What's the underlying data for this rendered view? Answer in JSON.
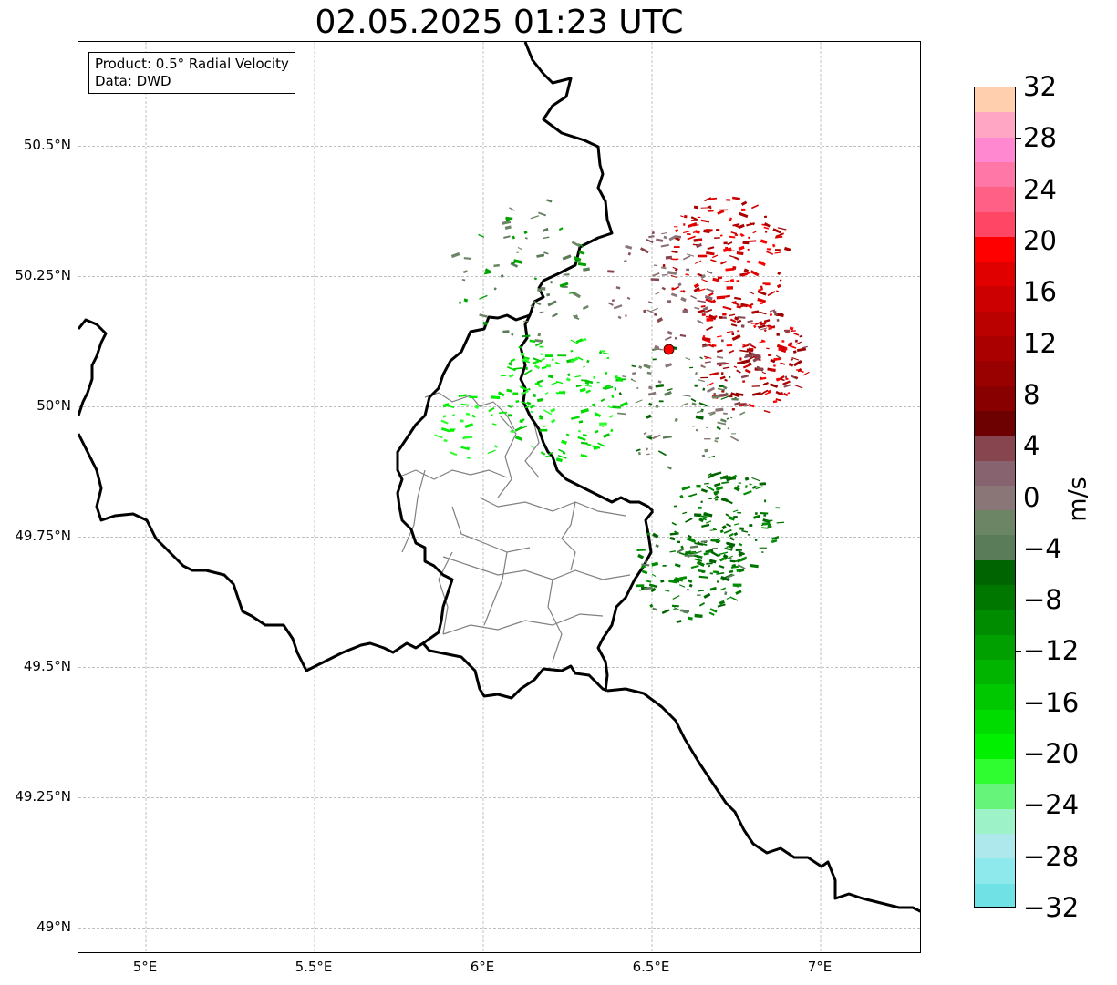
{
  "title": "02.05.2025 01:23 UTC",
  "infobox": {
    "product": "Product: 0.5° Radial Velocity",
    "data_source": "Data: DWD"
  },
  "map": {
    "lon_range": [
      4.8,
      7.3
    ],
    "lat_range": [
      48.95,
      50.7
    ],
    "x_ticks": [
      {
        "lon": 5.0,
        "label": "5°E"
      },
      {
        "lon": 5.5,
        "label": "5.5°E"
      },
      {
        "lon": 6.0,
        "label": "6°E"
      },
      {
        "lon": 6.5,
        "label": "6.5°E"
      },
      {
        "lon": 7.0,
        "label": "7°E"
      }
    ],
    "y_ticks": [
      {
        "lat": 50.5,
        "label": "50.5°N"
      },
      {
        "lat": 50.25,
        "label": "50.25°N"
      },
      {
        "lat": 50.0,
        "label": "50°N"
      },
      {
        "lat": 49.75,
        "label": "49.75°N"
      },
      {
        "lat": 49.5,
        "label": "49.5°N"
      },
      {
        "lat": 49.25,
        "label": "49.25°N"
      },
      {
        "lat": 49.0,
        "label": "49°N"
      }
    ],
    "gridlines": true,
    "radar_site": {
      "lon": 6.55,
      "lat": 50.11,
      "color": "#ff0000"
    },
    "border_color": "#000000",
    "admin_border_color": "#808080"
  },
  "colorbar": {
    "unit": "m/s",
    "min": -32,
    "max": 32,
    "tick_labels": [
      "32",
      "28",
      "24",
      "20",
      "16",
      "12",
      "8",
      "4",
      "0",
      "−4",
      "−8",
      "−12",
      "−16",
      "−20",
      "−24",
      "−28",
      "−32"
    ],
    "colors_top_to_bottom": [
      "#ffcfae",
      "#ffa6c5",
      "#ff88d0",
      "#ff77a6",
      "#ff6085",
      "#ff4665",
      "#ff0000",
      "#e00000",
      "#cc0000",
      "#bb0000",
      "#aa0000",
      "#990000",
      "#880000",
      "#6d0000",
      "#874550",
      "#87626f",
      "#8a7676",
      "#6c8564",
      "#5a7c58",
      "#006400",
      "#007800",
      "#008c00",
      "#00a000",
      "#00b400",
      "#00c800",
      "#00dc00",
      "#00f000",
      "#2ffd2f",
      "#66f57a",
      "#9df2c8",
      "#aee7ec",
      "#8de9ec",
      "#70e2e6"
    ]
  }
}
